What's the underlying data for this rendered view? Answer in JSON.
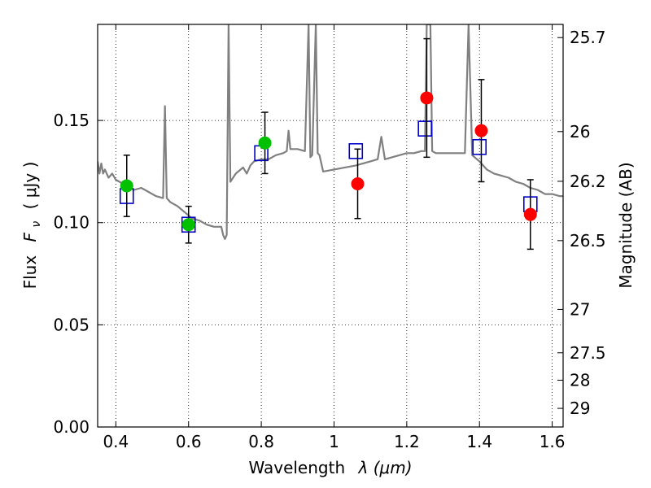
{
  "chart_data": {
    "type": "scatter",
    "xlabel_text": "Wavelength",
    "xlabel_math": "λ (μm)",
    "ylabel_text": "Flux",
    "ylabel_math": "F",
    "ylabel_sub": "ν",
    "ylabel_unit": "( μJy )",
    "y2label": "Magnitude (AB)",
    "xlim": [
      0.35,
      1.63
    ],
    "ylim": [
      0.0,
      0.197
    ],
    "grid": true,
    "x_ticks": [
      {
        "value": 0.4,
        "label": "0.4"
      },
      {
        "value": 0.6,
        "label": "0.6"
      },
      {
        "value": 0.8,
        "label": "0.8"
      },
      {
        "value": 1.0,
        "label": "1"
      },
      {
        "value": 1.2,
        "label": "1.2"
      },
      {
        "value": 1.4,
        "label": "1.4"
      },
      {
        "value": 1.6,
        "label": "1.6"
      }
    ],
    "y_ticks": [
      {
        "value": 0.0,
        "label": "0.00"
      },
      {
        "value": 0.05,
        "label": "0.05"
      },
      {
        "value": 0.1,
        "label": "0.10"
      },
      {
        "value": 0.15,
        "label": "0.15"
      }
    ],
    "y2_ticks": [
      {
        "value": 25.7,
        "label": "25.7"
      },
      {
        "value": 26.0,
        "label": "26"
      },
      {
        "value": 26.2,
        "label": "26.2"
      },
      {
        "value": 26.5,
        "label": "26.5"
      },
      {
        "value": 27.0,
        "label": "27"
      },
      {
        "value": 27.5,
        "label": "27.5"
      },
      {
        "value": 28.0,
        "label": "28"
      },
      {
        "value": 29.0,
        "label": "29"
      }
    ],
    "colors": {
      "model_line": "#808080",
      "optical_points": "#00c000",
      "nir_points": "#ff0000",
      "model_squares": "#0000cc",
      "error_bars": "#000000"
    },
    "model_spectrum": [
      [
        0.35,
        0.13
      ],
      [
        0.355,
        0.124
      ],
      [
        0.36,
        0.129
      ],
      [
        0.365,
        0.124
      ],
      [
        0.37,
        0.126
      ],
      [
        0.38,
        0.122
      ],
      [
        0.39,
        0.124
      ],
      [
        0.4,
        0.121
      ],
      [
        0.41,
        0.12
      ],
      [
        0.42,
        0.119
      ],
      [
        0.43,
        0.117
      ],
      [
        0.44,
        0.117
      ],
      [
        0.45,
        0.116
      ],
      [
        0.47,
        0.117
      ],
      [
        0.49,
        0.115
      ],
      [
        0.51,
        0.113
      ],
      [
        0.53,
        0.112
      ],
      [
        0.535,
        0.157
      ],
      [
        0.54,
        0.112
      ],
      [
        0.55,
        0.11
      ],
      [
        0.57,
        0.108
      ],
      [
        0.59,
        0.105
      ],
      [
        0.61,
        0.102
      ],
      [
        0.63,
        0.101
      ],
      [
        0.65,
        0.099
      ],
      [
        0.67,
        0.098
      ],
      [
        0.69,
        0.098
      ],
      [
        0.695,
        0.094
      ],
      [
        0.7,
        0.092
      ],
      [
        0.705,
        0.094
      ],
      [
        0.71,
        0.197
      ],
      [
        0.715,
        0.12
      ],
      [
        0.73,
        0.124
      ],
      [
        0.75,
        0.127
      ],
      [
        0.76,
        0.124
      ],
      [
        0.77,
        0.128
      ],
      [
        0.78,
        0.13
      ],
      [
        0.8,
        0.131
      ],
      [
        0.82,
        0.131
      ],
      [
        0.84,
        0.133
      ],
      [
        0.86,
        0.134
      ],
      [
        0.87,
        0.135
      ],
      [
        0.875,
        0.145
      ],
      [
        0.88,
        0.136
      ],
      [
        0.9,
        0.136
      ],
      [
        0.92,
        0.135
      ],
      [
        0.93,
        0.197
      ],
      [
        0.935,
        0.132
      ],
      [
        0.94,
        0.133
      ],
      [
        0.95,
        0.197
      ],
      [
        0.955,
        0.134
      ],
      [
        0.96,
        0.133
      ],
      [
        0.97,
        0.125
      ],
      [
        1.0,
        0.126
      ],
      [
        1.03,
        0.127
      ],
      [
        1.06,
        0.128
      ],
      [
        1.08,
        0.129
      ],
      [
        1.1,
        0.13
      ],
      [
        1.12,
        0.131
      ],
      [
        1.13,
        0.142
      ],
      [
        1.14,
        0.131
      ],
      [
        1.16,
        0.132
      ],
      [
        1.18,
        0.133
      ],
      [
        1.2,
        0.134
      ],
      [
        1.22,
        0.134
      ],
      [
        1.24,
        0.135
      ],
      [
        1.25,
        0.135
      ],
      [
        1.255,
        0.197
      ],
      [
        1.265,
        0.197
      ],
      [
        1.27,
        0.135
      ],
      [
        1.28,
        0.134
      ],
      [
        1.3,
        0.134
      ],
      [
        1.32,
        0.134
      ],
      [
        1.34,
        0.134
      ],
      [
        1.36,
        0.134
      ],
      [
        1.37,
        0.197
      ],
      [
        1.38,
        0.133
      ],
      [
        1.4,
        0.13
      ],
      [
        1.42,
        0.126
      ],
      [
        1.44,
        0.124
      ],
      [
        1.46,
        0.123
      ],
      [
        1.48,
        0.122
      ],
      [
        1.5,
        0.12
      ],
      [
        1.52,
        0.119
      ],
      [
        1.54,
        0.117
      ],
      [
        1.56,
        0.116
      ],
      [
        1.58,
        0.114
      ],
      [
        1.6,
        0.114
      ],
      [
        1.62,
        0.113
      ],
      [
        1.63,
        0.113
      ]
    ],
    "model_squares": [
      {
        "x": 0.43,
        "y": 0.113
      },
      {
        "x": 0.6,
        "y": 0.099
      },
      {
        "x": 0.8,
        "y": 0.134
      },
      {
        "x": 1.06,
        "y": 0.135
      },
      {
        "x": 1.25,
        "y": 0.146
      },
      {
        "x": 1.4,
        "y": 0.137
      },
      {
        "x": 1.54,
        "y": 0.109
      }
    ],
    "optical_points": [
      {
        "x": 0.43,
        "y": 0.118,
        "err": 0.015
      },
      {
        "x": 0.6,
        "y": 0.099,
        "err": 0.009
      },
      {
        "x": 0.81,
        "y": 0.139,
        "err": 0.015
      }
    ],
    "nir_points": [
      {
        "x": 1.065,
        "y": 0.119,
        "err": 0.017
      },
      {
        "x": 1.255,
        "y": 0.161,
        "err": 0.029
      },
      {
        "x": 1.405,
        "y": 0.145,
        "err": 0.025
      },
      {
        "x": 1.54,
        "y": 0.104,
        "err": 0.017
      }
    ]
  }
}
